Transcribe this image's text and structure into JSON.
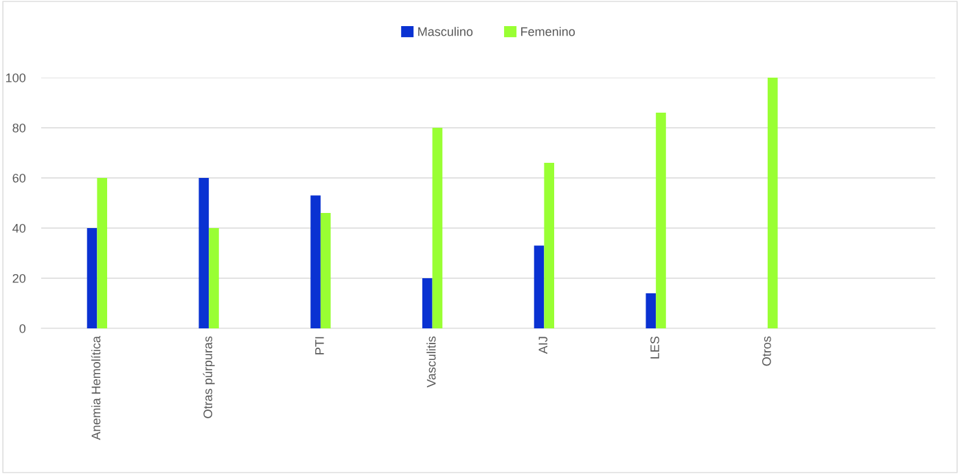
{
  "chart_data": {
    "type": "bar",
    "categories": [
      "Anemia Hemolítica",
      "Otras púrpuras",
      "PTI",
      "Vasculitis",
      "AIJ",
      "LES",
      "Otros",
      null
    ],
    "series": [
      {
        "name": "Masculino",
        "color": "#0a32d2",
        "values": [
          40,
          60,
          53,
          20,
          33,
          14,
          0,
          null
        ]
      },
      {
        "name": "Femenino",
        "color": "#99ff33",
        "values": [
          60,
          40,
          46,
          80,
          66,
          86,
          100,
          null
        ]
      }
    ],
    "ylim": [
      0,
      100
    ],
    "yticks": [
      0,
      20,
      40,
      60,
      80,
      100
    ],
    "grid": "y",
    "legend": "top"
  }
}
